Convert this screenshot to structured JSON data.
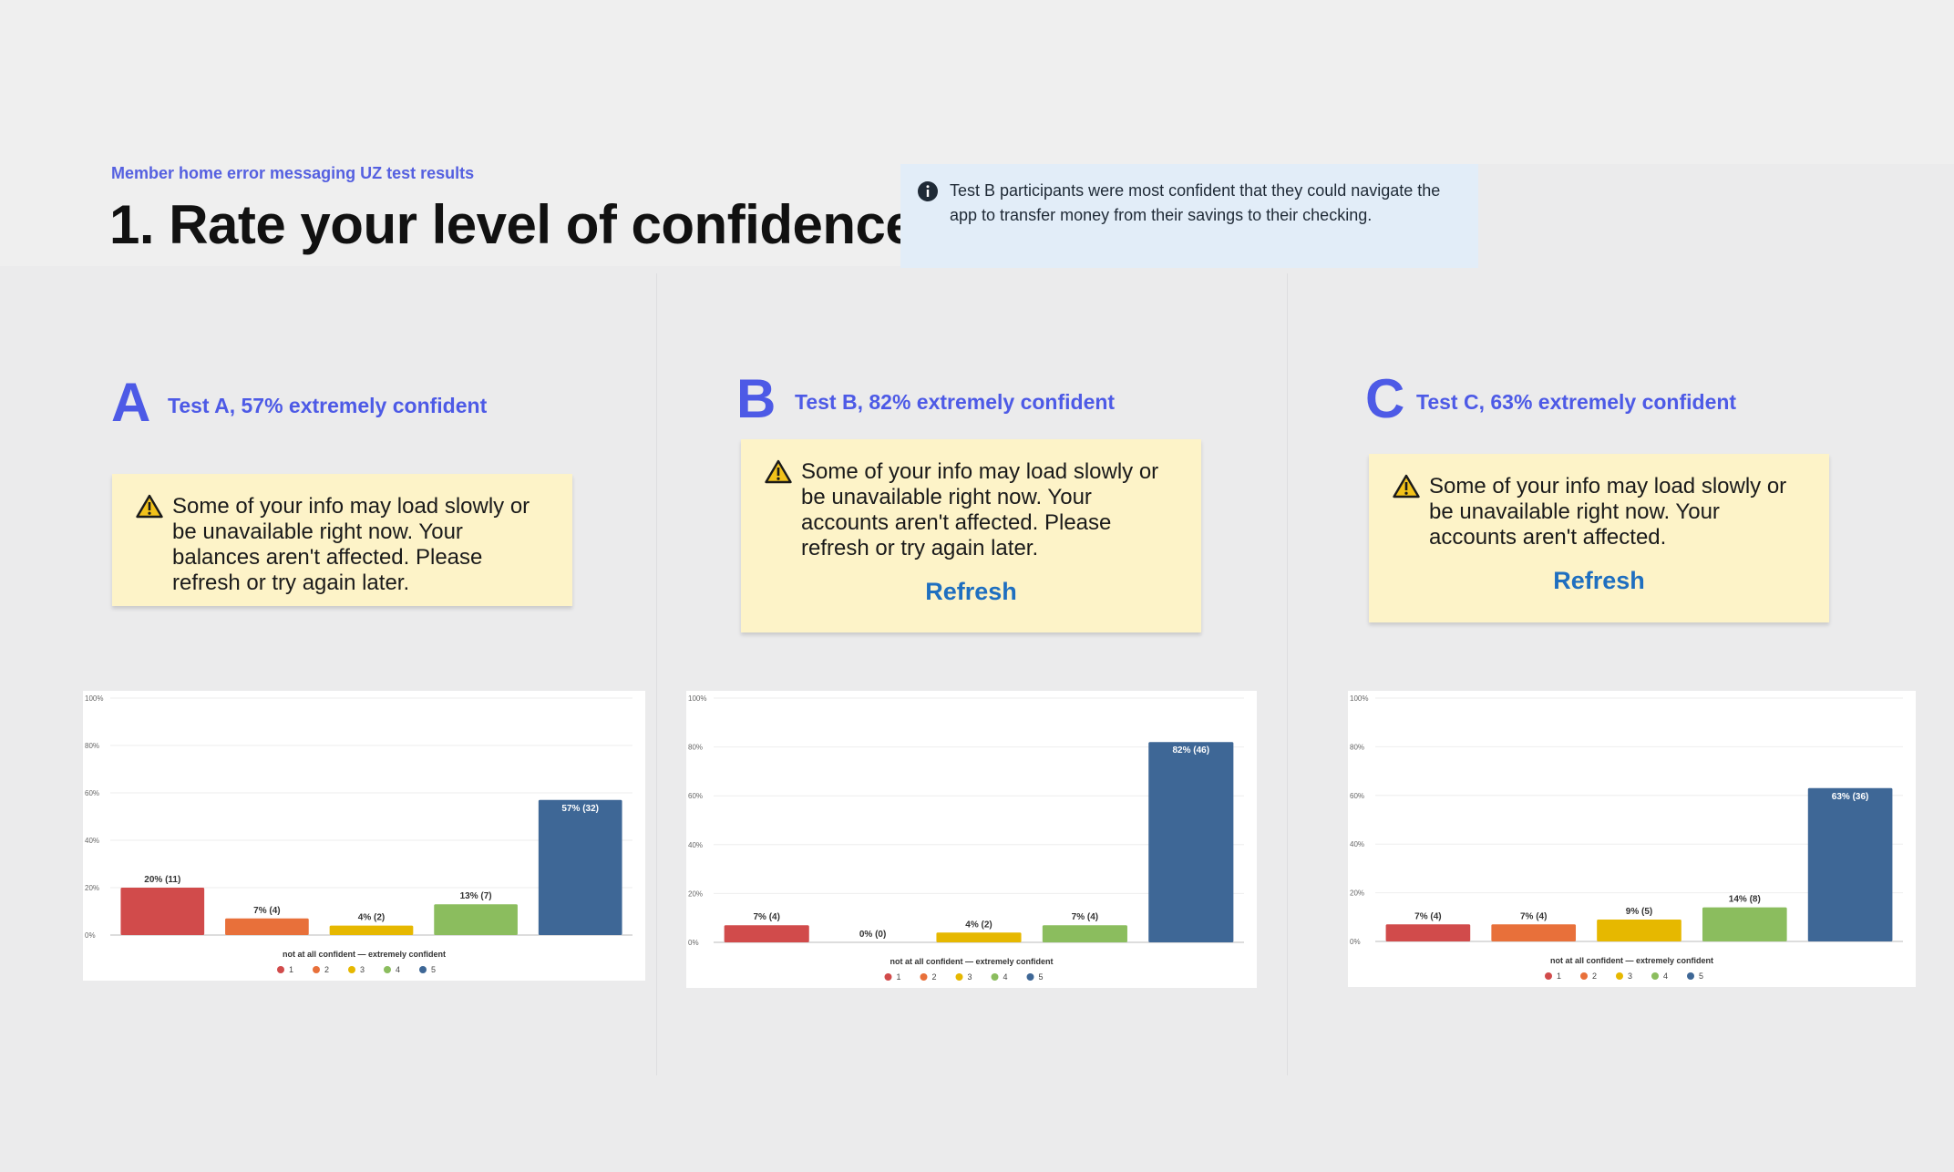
{
  "header": {
    "eyebrow": "Member home error messaging UZ test results",
    "title": "1. Rate your level of confidence"
  },
  "note": {
    "icon": "info-icon",
    "text": "Test B participants were most confident that they could navigate the app to transfer money from their savings to their checking."
  },
  "colors": {
    "accent": "#4d5ae6",
    "alert_bg": "#fdf3c8",
    "note_bg": "#e2edf8",
    "link": "#1f6fc0",
    "series": [
      "#d14b4b",
      "#e8703a",
      "#e6b800",
      "#8bbd5e",
      "#3e6796"
    ]
  },
  "variants": [
    {
      "letter": "A",
      "heading": "Test A,  57% extremely confident",
      "alert_icon": "warning-icon",
      "alert_text": "Some of your info may load slowly or be unavailable right now. Your balances aren't affected. Please refresh or try again later.",
      "refresh_label": ""
    },
    {
      "letter": "B",
      "heading": "Test B,  82% extremely confident",
      "alert_icon": "warning-icon",
      "alert_text": "Some of your info may load slowly or be unavailable right now. Your accounts aren't affected. Please refresh or try again later.",
      "refresh_label": "Refresh"
    },
    {
      "letter": "C",
      "heading": "Test C,  63% extremely confident",
      "alert_icon": "warning-icon",
      "alert_text": "Some of your info may load slowly or be unavailable right now. Your accounts aren't affected.",
      "refresh_label": "Refresh"
    }
  ],
  "chart_data": [
    {
      "type": "bar",
      "categories": [
        "1",
        "2",
        "3",
        "4",
        "5"
      ],
      "values": [
        20,
        7,
        4,
        13,
        57
      ],
      "counts": [
        11,
        4,
        2,
        7,
        32
      ],
      "data_labels": [
        "20% (11)",
        "7% (4)",
        "4% (2)",
        "13% (7)",
        "57% (32)"
      ],
      "yticks": [
        "0%",
        "20%",
        "40%",
        "60%",
        "80%",
        "100%"
      ],
      "ylim": [
        0,
        100
      ],
      "xlabel": "not at all confident — extremely confident",
      "legend": [
        "1",
        "2",
        "3",
        "4",
        "5"
      ],
      "legend_position": "bottom",
      "grid": true
    },
    {
      "type": "bar",
      "categories": [
        "1",
        "2",
        "3",
        "4",
        "5"
      ],
      "values": [
        7,
        0,
        4,
        7,
        82
      ],
      "counts": [
        4,
        0,
        2,
        4,
        46
      ],
      "data_labels": [
        "7% (4)",
        "0% (0)",
        "4% (2)",
        "7% (4)",
        "82% (46)"
      ],
      "yticks": [
        "0%",
        "20%",
        "40%",
        "60%",
        "80%",
        "100%"
      ],
      "ylim": [
        0,
        100
      ],
      "xlabel": "not at all confident — extremely confident",
      "legend": [
        "1",
        "2",
        "3",
        "4",
        "5"
      ],
      "legend_position": "bottom",
      "grid": true
    },
    {
      "type": "bar",
      "categories": [
        "1",
        "2",
        "3",
        "4",
        "5"
      ],
      "values": [
        7,
        7,
        9,
        14,
        63
      ],
      "counts": [
        4,
        4,
        5,
        8,
        36
      ],
      "data_labels": [
        "7% (4)",
        "7% (4)",
        "9% (5)",
        "14% (8)",
        "63% (36)"
      ],
      "yticks": [
        "0%",
        "20%",
        "40%",
        "60%",
        "80%",
        "100%"
      ],
      "ylim": [
        0,
        100
      ],
      "xlabel": "not at all confident — extremely confident",
      "legend": [
        "1",
        "2",
        "3",
        "4",
        "5"
      ],
      "legend_position": "bottom",
      "grid": true
    }
  ]
}
